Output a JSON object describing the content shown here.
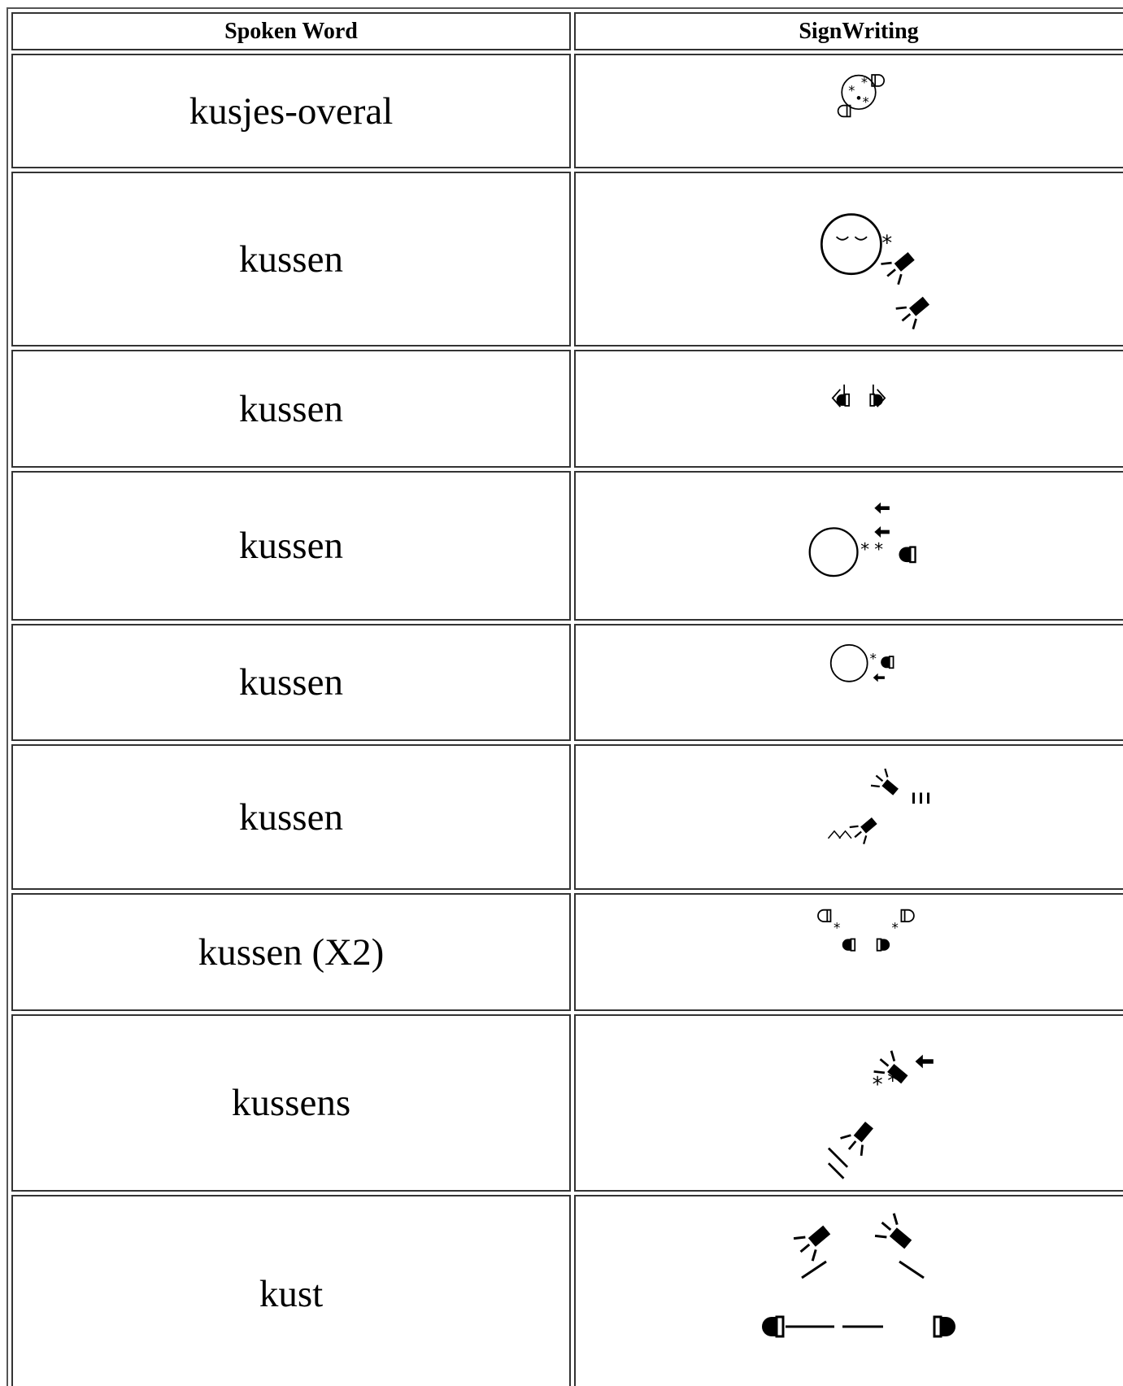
{
  "table": {
    "header": [
      "Spoken Word",
      "SignWriting"
    ],
    "rows": [
      [
        "kusjes-overal"
      ],
      [
        "kussen"
      ],
      [
        "kussen"
      ],
      [
        "kussen"
      ],
      [
        "kussen"
      ],
      [
        "kussen"
      ],
      [
        "kussen (X2)"
      ],
      [
        "kussens"
      ],
      [
        "kust"
      ]
    ]
  }
}
